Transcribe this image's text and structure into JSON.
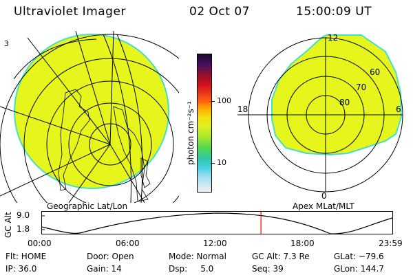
{
  "header": {
    "instrument": "Ultraviolet Imager",
    "date": "02 Oct 07",
    "time": "15:00:09 UT"
  },
  "left_map": {
    "corner_label": "3",
    "caption": "Geographic Lat/Lon"
  },
  "colorbar": {
    "unit_label": "photon cm⁻²s⁻¹",
    "ticks": [
      "100",
      "10"
    ]
  },
  "right_polar": {
    "caption": "Apex MLat/MLT",
    "mlt_labels": {
      "top": "12",
      "right": "6",
      "bottom": "0",
      "left": "18"
    },
    "lat_labels": [
      "60",
      "70",
      "80"
    ]
  },
  "altitude_plot": {
    "ylabel": "GC Alt",
    "y_ticks": [
      "9.0",
      "1.8"
    ],
    "x_ticks": [
      "00:00",
      "06:00",
      "12:00",
      "18:00",
      "23:59"
    ],
    "current_time_marker_fraction": 0.625,
    "marker_color": "#ff0000"
  },
  "status": {
    "flt": "Flt: HOME",
    "ip": "IP: 36.0",
    "door": "Door: Open",
    "gain": "Gain: 14",
    "mode": "Mode: Normal",
    "dsp": "Dsp:     5.0",
    "gc_alt": "GC Alt: 7.3 Re",
    "seq": "Seq: 39",
    "glat": "GLat: −79.6",
    "glon": "GLon: 144.7"
  },
  "colors": {
    "auroral_fill": "#e6f51c",
    "auroral_edge": "#42e0cc",
    "line": "#000000"
  }
}
